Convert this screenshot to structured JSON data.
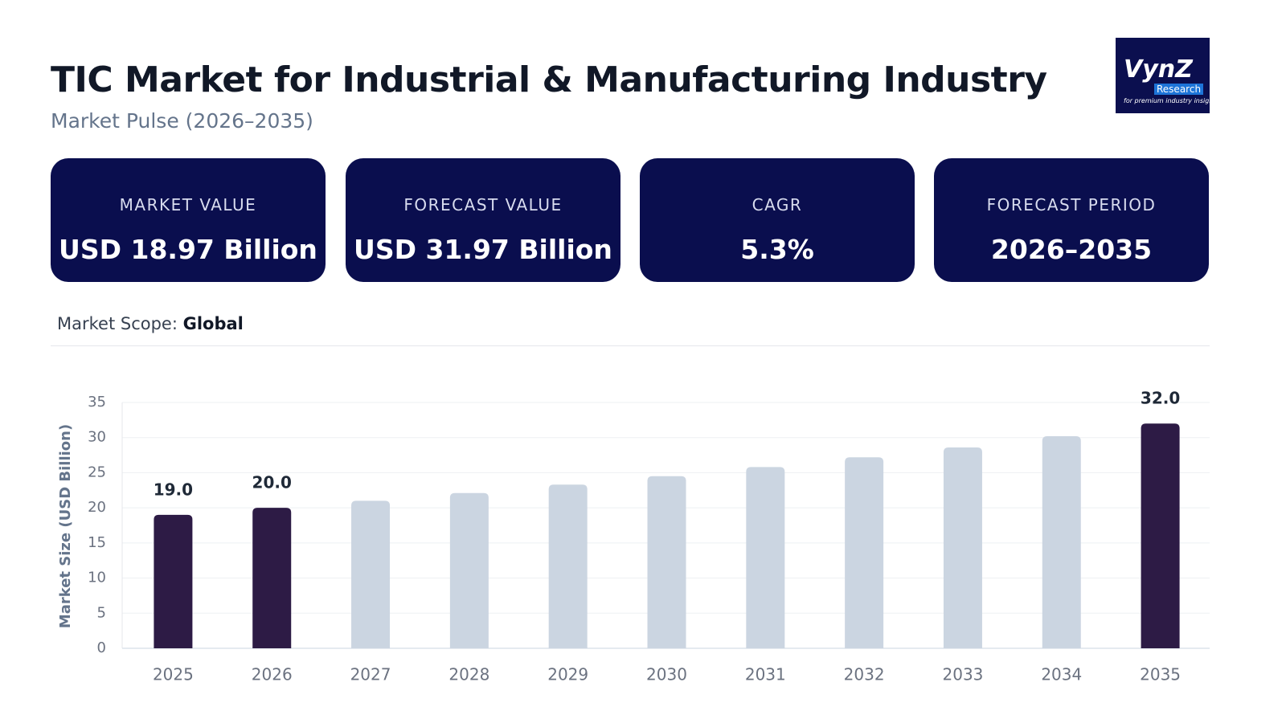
{
  "header": {
    "title": "TIC Market for Industrial & Manufacturing Industry",
    "subtitle": "Market Pulse (2026–2035)"
  },
  "logo": {
    "name": "VynZ",
    "sub": "Research",
    "tagline": "for premium industry insights"
  },
  "cards": [
    {
      "label": "MARKET VALUE",
      "value": "USD 18.97 Billion"
    },
    {
      "label": "FORECAST VALUE",
      "value": "USD 31.97 Billion"
    },
    {
      "label": "CAGR",
      "value": "5.3%"
    },
    {
      "label": "FORECAST PERIOD",
      "value": "2026–2035"
    }
  ],
  "scope": {
    "label": "Market Scope:",
    "value": "Global"
  },
  "chart_data": {
    "type": "bar",
    "y_label": "Market Size (USD Billion)",
    "categories": [
      "2025",
      "2026",
      "2027",
      "2028",
      "2029",
      "2030",
      "2031",
      "2032",
      "2033",
      "2034",
      "2035"
    ],
    "values": [
      19.0,
      20.0,
      21.0,
      22.1,
      23.3,
      24.5,
      25.8,
      27.2,
      28.6,
      30.2,
      32.0
    ],
    "value_labels": [
      "19.0",
      "20.0",
      null,
      null,
      null,
      null,
      null,
      null,
      null,
      null,
      "32.0"
    ],
    "colors": [
      "#2d1b45",
      "#2d1b45",
      "#cbd5e1",
      "#cbd5e1",
      "#cbd5e1",
      "#cbd5e1",
      "#cbd5e1",
      "#cbd5e1",
      "#cbd5e1",
      "#cbd5e1",
      "#2d1b45"
    ],
    "ylim": [
      0,
      35
    ],
    "yticks": [
      0,
      5,
      10,
      15,
      20,
      25,
      30,
      35
    ],
    "grid": true
  }
}
